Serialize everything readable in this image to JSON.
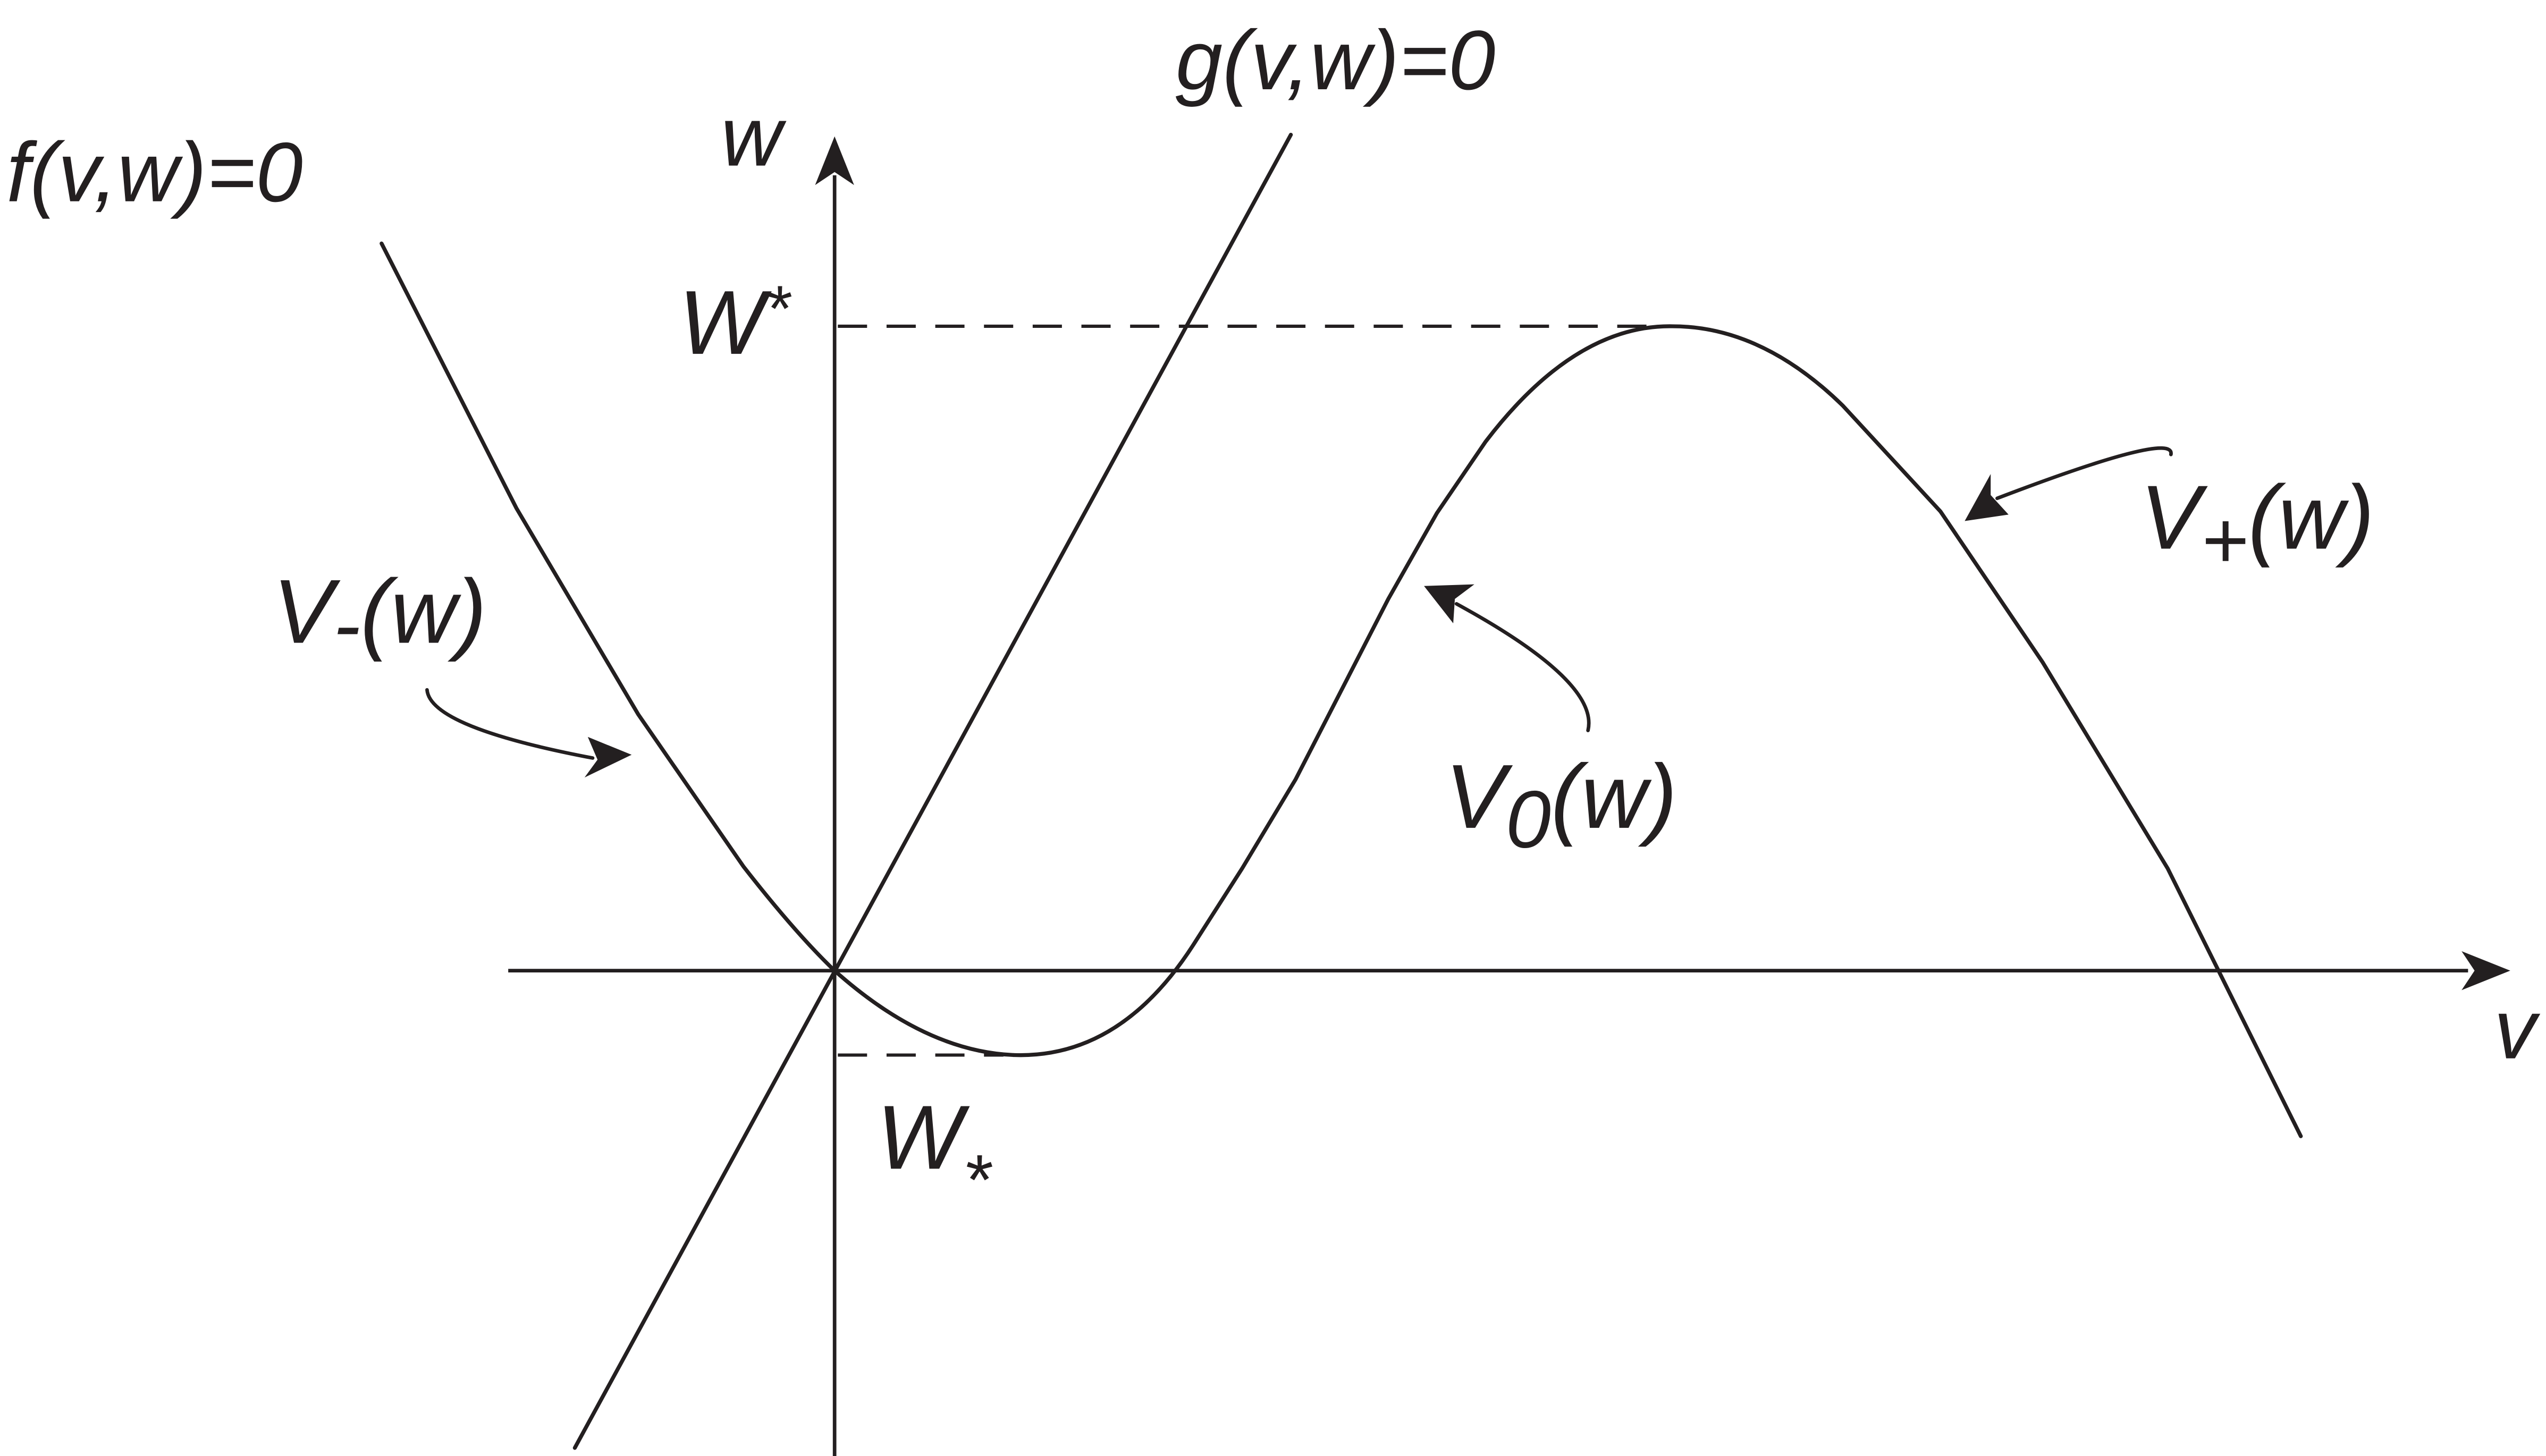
{
  "labels": {
    "f_nullcline": "f(v,w)=0",
    "g_nullcline": "g(v,w)=0",
    "w_axis": "w",
    "v_axis": "v",
    "w_upper_base": "W",
    "w_upper_mark": "*",
    "w_lower_base": "W",
    "w_lower_mark": "*",
    "v_minus_base": "V",
    "v_minus_sub": "-",
    "v_minus_arg": "(w)",
    "v_zero_base": "V",
    "v_zero_sub": "0",
    "v_zero_arg": "(w)",
    "v_plus_base": "V",
    "v_plus_sub": "+",
    "v_plus_arg": "(w)"
  },
  "colors": {
    "ink": "#231f20",
    "background": "#ffffff"
  }
}
